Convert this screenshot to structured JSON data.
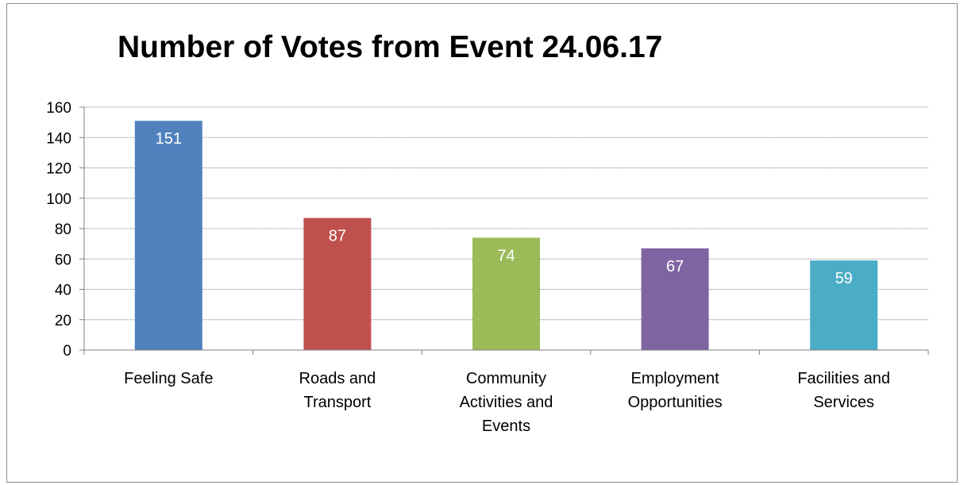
{
  "chart_data": {
    "type": "bar",
    "title": "Number of Votes from Event 24.06.17",
    "categories": [
      "Feeling Safe",
      "Roads and Transport",
      "Community Activities and Events",
      "Employment Opportunities",
      "Facilities and Services"
    ],
    "category_lines": [
      [
        "Feeling Safe"
      ],
      [
        "Roads and",
        "Transport"
      ],
      [
        "Community",
        "Activities and",
        "Events"
      ],
      [
        "Employment",
        "Opportunities"
      ],
      [
        "Facilities and",
        "Services"
      ]
    ],
    "values": [
      151,
      87,
      74,
      67,
      59
    ],
    "data_labels": [
      "151",
      "87",
      "74",
      "67",
      "59"
    ],
    "bar_colors": [
      "#4f81bd",
      "#c0504d",
      "#9bbb59",
      "#8064a2",
      "#4bacc6"
    ],
    "yticks": [
      0,
      20,
      40,
      60,
      80,
      100,
      120,
      140,
      160
    ],
    "ylim": [
      0,
      160
    ],
    "xlabel": "",
    "ylabel": "",
    "grid": true,
    "legend": "none"
  }
}
